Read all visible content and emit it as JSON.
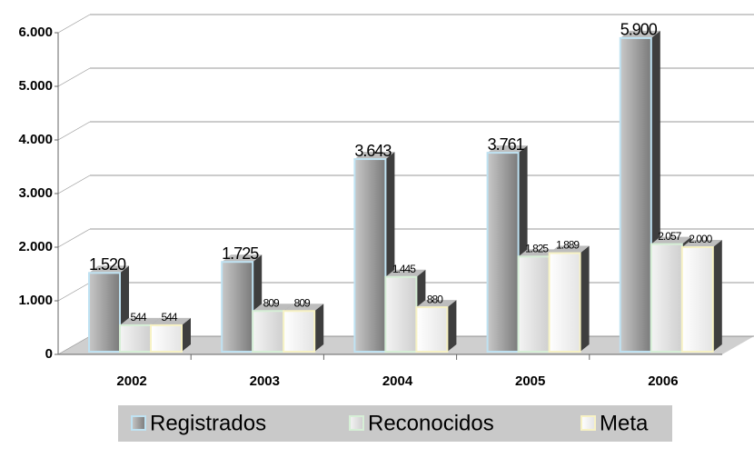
{
  "chart_data": {
    "type": "bar3d",
    "categories": [
      "2002",
      "2003",
      "2004",
      "2005",
      "2006"
    ],
    "series": [
      {
        "name": "Registrados",
        "color": "#9c9c9c",
        "values": [
          1520,
          1725,
          3643,
          3761,
          5900
        ],
        "value_labels": [
          "1.520",
          "1.725",
          "3.643",
          "3.761",
          "5.900"
        ]
      },
      {
        "name": "Reconocidos",
        "color": "#dedede",
        "values": [
          544,
          809,
          1445,
          1825,
          2057
        ],
        "value_labels": [
          "544",
          "809",
          "1.445",
          "1.825",
          "2.057"
        ]
      },
      {
        "name": "Meta",
        "color": "#f2f2f2",
        "values": [
          544,
          809,
          880,
          1889,
          2000
        ],
        "value_labels": [
          "544",
          "809",
          "880",
          "1.889",
          "2.000"
        ]
      }
    ],
    "ylim": [
      0,
      6000
    ],
    "yticks": [
      0,
      {
        "value": 1000,
        "label": "1.000"
      },
      {
        "value": 2000,
        "label": "2.000"
      },
      {
        "value": 3000,
        "label": "3.000"
      },
      {
        "value": 4000,
        "label": "4.000"
      },
      {
        "value": 5000,
        "label": "5.000"
      },
      {
        "value": 6000,
        "label": "6.000"
      }
    ],
    "grid": true
  }
}
